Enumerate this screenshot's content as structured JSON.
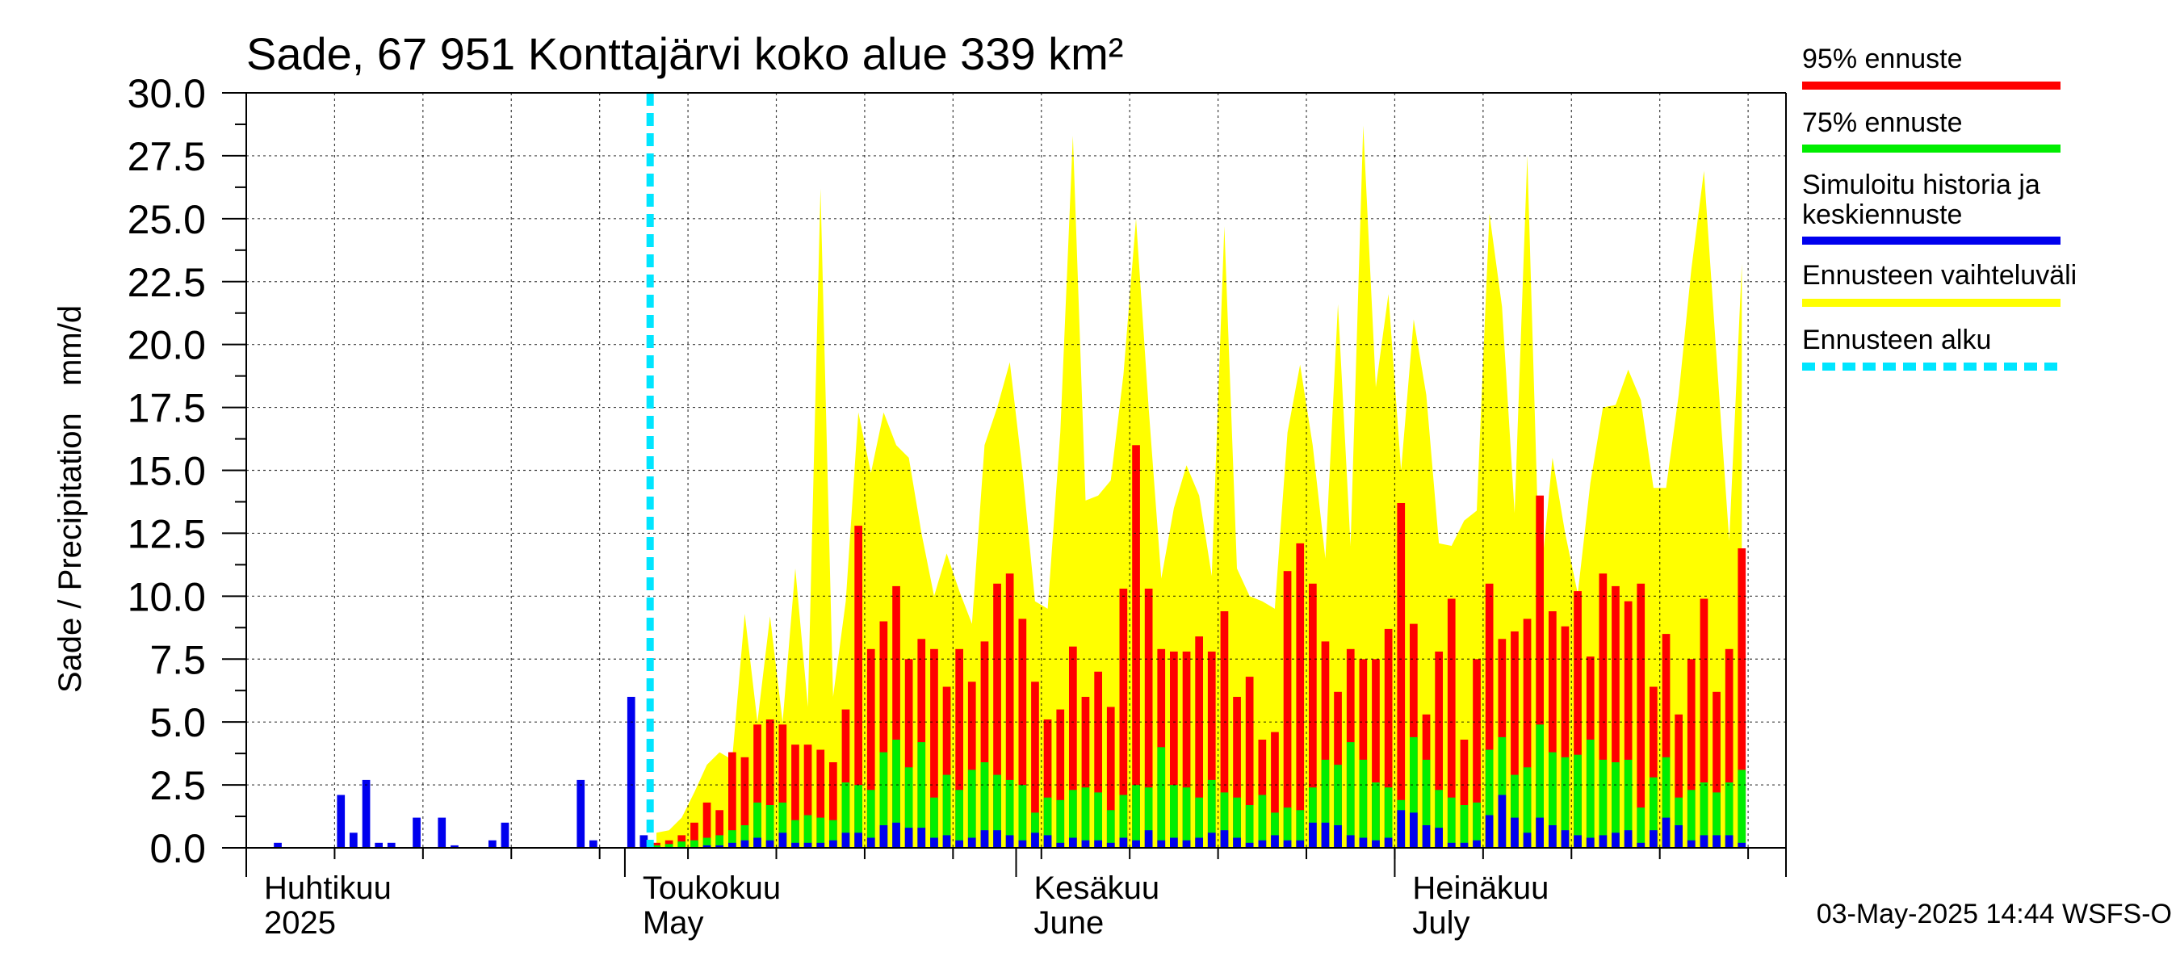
{
  "chart_data": {
    "type": "bar",
    "title": "Sade, 67 951 Konttajärvi koko alue 339 km²",
    "ylabel": "Sade / Precipitation   mm/d",
    "ylim": [
      0,
      30
    ],
    "yticks": [
      "0.0",
      "2.5",
      "5.0",
      "7.5",
      "10.0",
      "12.5",
      "15.0",
      "17.5",
      "20.0",
      "22.5",
      "25.0",
      "27.5",
      "30.0"
    ],
    "x_start": "2025-04-01",
    "x_end": "2025-07-31",
    "forecast_start": "2025-05-03",
    "month_labels": [
      {
        "date": "2025-04-01",
        "line1": "Huhtikuu",
        "line2": "2025"
      },
      {
        "date": "2025-05-01",
        "line1": "Toukokuu",
        "line2": "May"
      },
      {
        "date": "2025-06-01",
        "line1": "Kesäkuu",
        "line2": "June"
      },
      {
        "date": "2025-07-01",
        "line1": "Heinäkuu",
        "line2": "July"
      }
    ],
    "grid": true,
    "legend_position": "right",
    "series": [
      {
        "name": "95% ennuste",
        "color": "#ff0000"
      },
      {
        "name": "75% ennuste",
        "color": "#00ee00"
      },
      {
        "name": "Simuloitu historia ja keskiennuste",
        "color": "#0000ee"
      },
      {
        "name": "Ennusteen vaihteluväli",
        "color": "#ffff00"
      },
      {
        "name": "Ennusteen alku",
        "color": "#00e5ff",
        "style": "dashed"
      }
    ],
    "history": {
      "start": "2025-04-01",
      "values": [
        0,
        0,
        0.2,
        0,
        0,
        0,
        0,
        2.1,
        0.6,
        2.7,
        0.2,
        0.2,
        0,
        1.2,
        0,
        1.2,
        0.1,
        0,
        0,
        0.3,
        1.0,
        0,
        0,
        0,
        0,
        0,
        2.7,
        0.3,
        0,
        0,
        6.0,
        0.5
      ]
    },
    "forecast": {
      "start": "2025-05-03",
      "p95": [
        0.2,
        0.3,
        0.5,
        1.0,
        1.8,
        1.5,
        3.8,
        3.6,
        4.9,
        5.1,
        4.9,
        4.1,
        4.1,
        3.9,
        3.4,
        5.5,
        12.8,
        7.9,
        9.0,
        10.4,
        7.5,
        8.3,
        7.9,
        6.4,
        7.9,
        6.6,
        8.2,
        10.5,
        10.9,
        9.1,
        6.6,
        5.1,
        5.5,
        8.0,
        6.0,
        7.0,
        5.6,
        10.3,
        16.0,
        10.3,
        7.9,
        7.8,
        7.8,
        8.4,
        7.8,
        9.4,
        6.0,
        6.8,
        4.3,
        4.6,
        11.0,
        12.1,
        10.5,
        8.2,
        6.2,
        7.9,
        7.5,
        7.5,
        8.7,
        13.7,
        8.9,
        5.3,
        7.8,
        9.9,
        4.3,
        7.5,
        10.5,
        8.3,
        8.6,
        9.1,
        14.0,
        9.4,
        8.8,
        10.2,
        7.6,
        10.9,
        10.4,
        9.8,
        10.5,
        6.4,
        8.5,
        5.3,
        7.5,
        9.9,
        6.2,
        7.9,
        11.9
      ],
      "p75": [
        0.1,
        0.15,
        0.25,
        0.3,
        0.4,
        0.5,
        0.7,
        0.9,
        1.8,
        1.7,
        1.8,
        1.1,
        1.3,
        1.2,
        1.1,
        2.6,
        2.5,
        2.3,
        3.8,
        4.3,
        3.2,
        4.2,
        2.0,
        2.9,
        2.3,
        3.1,
        3.4,
        2.9,
        2.7,
        2.5,
        1.4,
        2.0,
        1.9,
        2.3,
        2.4,
        2.2,
        1.5,
        2.1,
        2.5,
        2.4,
        4.0,
        2.5,
        2.4,
        2.0,
        2.7,
        2.2,
        2.0,
        1.7,
        2.1,
        1.4,
        1.6,
        1.5,
        2.4,
        3.5,
        3.3,
        4.2,
        3.5,
        2.6,
        2.4,
        1.9,
        4.4,
        3.5,
        2.3,
        2.0,
        1.7,
        1.8,
        3.9,
        4.4,
        2.9,
        3.2,
        4.9,
        3.8,
        3.6,
        3.7,
        4.3,
        3.5,
        3.4,
        3.5,
        1.6,
        2.8,
        3.6,
        2.0,
        2.3,
        2.6,
        2.2,
        2.6,
        3.1
      ],
      "median": [
        0,
        0,
        0,
        0,
        0.1,
        0.1,
        0.2,
        0.3,
        0.4,
        0.3,
        0.6,
        0.2,
        0.2,
        0.2,
        0.3,
        0.6,
        0.6,
        0.4,
        0.9,
        1.0,
        0.8,
        0.8,
        0.4,
        0.5,
        0.3,
        0.4,
        0.7,
        0.7,
        0.5,
        0.3,
        0.6,
        0.5,
        0.2,
        0.4,
        0.3,
        0.3,
        0.2,
        0.4,
        0.3,
        0.7,
        0.3,
        0.4,
        0.3,
        0.4,
        0.6,
        0.7,
        0.4,
        0.2,
        0.3,
        0.5,
        0.3,
        0.3,
        1.0,
        1.0,
        0.9,
        0.5,
        0.4,
        0.3,
        0.4,
        1.5,
        1.4,
        0.9,
        0.8,
        0.2,
        0.2,
        0.3,
        1.3,
        2.1,
        1.2,
        0.6,
        1.2,
        0.9,
        0.7,
        0.5,
        0.4,
        0.5,
        0.6,
        0.7,
        0.2,
        0.7,
        1.2,
        0.9,
        0.3,
        0.5,
        0.5,
        0.5,
        0.2
      ],
      "max": [
        0.6,
        0.7,
        1.2,
        2.2,
        3.3,
        3.8,
        3.5,
        9.3,
        5.0,
        9.2,
        5.0,
        11.1,
        5.6,
        26.2,
        6.0,
        9.8,
        17.3,
        14.9,
        17.3,
        16.0,
        15.5,
        12.5,
        10.0,
        11.7,
        10.2,
        8.9,
        16.0,
        17.5,
        19.3,
        15.0,
        9.8,
        9.5,
        16.5,
        28.3,
        13.8,
        14.0,
        14.6,
        18.8,
        25.0,
        17.5,
        10.7,
        13.5,
        15.2,
        14.0,
        10.8,
        24.7,
        11.1,
        10.0,
        9.8,
        9.5,
        16.5,
        19.2,
        16.0,
        11.5,
        21.6,
        12.0,
        28.7,
        18.3,
        22.0,
        15.0,
        21.0,
        18.0,
        12.1,
        12.0,
        13.0,
        13.4,
        25.2,
        21.5,
        13.3,
        27.5,
        10.3,
        15.5,
        12.5,
        10.1,
        14.5,
        17.5,
        17.6,
        19.0,
        17.8,
        14.3,
        14.3,
        18.0,
        23.0,
        26.9,
        19.5,
        12.2,
        23.2
      ]
    },
    "footer": "03-May-2025 14:44 WSFS-O"
  }
}
